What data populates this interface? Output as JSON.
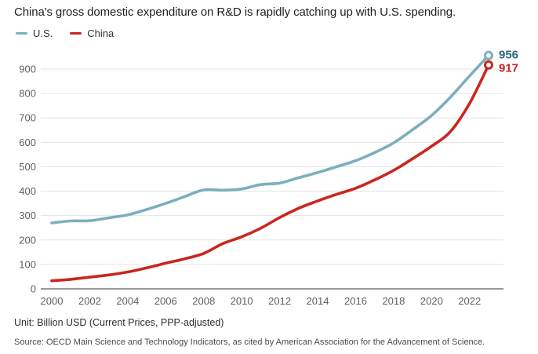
{
  "title": "China's gross domestic expenditure on R&D is rapidly catching up with U.S. spending.",
  "unit_note": "Unit: Billion USD (Current Prices, PPP-adjusted)",
  "source_note": "Source: OECD Main Science and Technology Indicators, as cited by American Association for the Advancement of Science.",
  "legend": {
    "us_label": "U.S.",
    "china_label": "China"
  },
  "colors": {
    "us_line": "#7CAFBD",
    "us_label": "#29697C",
    "china_line": "#C9261F",
    "china_label": "#C9261F",
    "gridline": "#E3E3E3",
    "zero_axis": "#9A9A9A",
    "tick_text": "#5F5F5F"
  },
  "chart_data": {
    "type": "line",
    "title": "China's gross domestic expenditure on R&D is rapidly catching up with U.S. spending.",
    "xlabel": "",
    "ylabel": "Billion USD (Current Prices, PPP-adjusted)",
    "x": [
      2000,
      2001,
      2002,
      2003,
      2004,
      2005,
      2006,
      2007,
      2008,
      2009,
      2010,
      2011,
      2012,
      2013,
      2014,
      2015,
      2016,
      2017,
      2018,
      2019,
      2020,
      2021,
      2022,
      2023
    ],
    "series": [
      {
        "name": "U.S.",
        "color": "#7CAFBD",
        "label_color": "#29697C",
        "end_label": "956",
        "values": [
          270,
          278,
          279,
          291,
          303,
          325,
          350,
          378,
          405,
          404,
          409,
          427,
          433,
          455,
          476,
          500,
          525,
          558,
          598,
          652,
          710,
          786,
          872,
          956
        ]
      },
      {
        "name": "China",
        "color": "#C9261F",
        "label_color": "#C9261F",
        "end_label": "917",
        "values": [
          33,
          39,
          48,
          57,
          69,
          86,
          105,
          123,
          145,
          185,
          213,
          248,
          292,
          330,
          360,
          387,
          412,
          446,
          485,
          533,
          584,
          645,
          760,
          917
        ]
      }
    ],
    "ylim": [
      0,
      960
    ],
    "yticks": [
      0,
      100,
      200,
      300,
      400,
      500,
      600,
      700,
      800,
      900
    ],
    "xticks": [
      2000,
      2002,
      2004,
      2006,
      2008,
      2010,
      2012,
      2014,
      2016,
      2018,
      2020,
      2022
    ],
    "grid": true,
    "legend_position": "top-left"
  }
}
